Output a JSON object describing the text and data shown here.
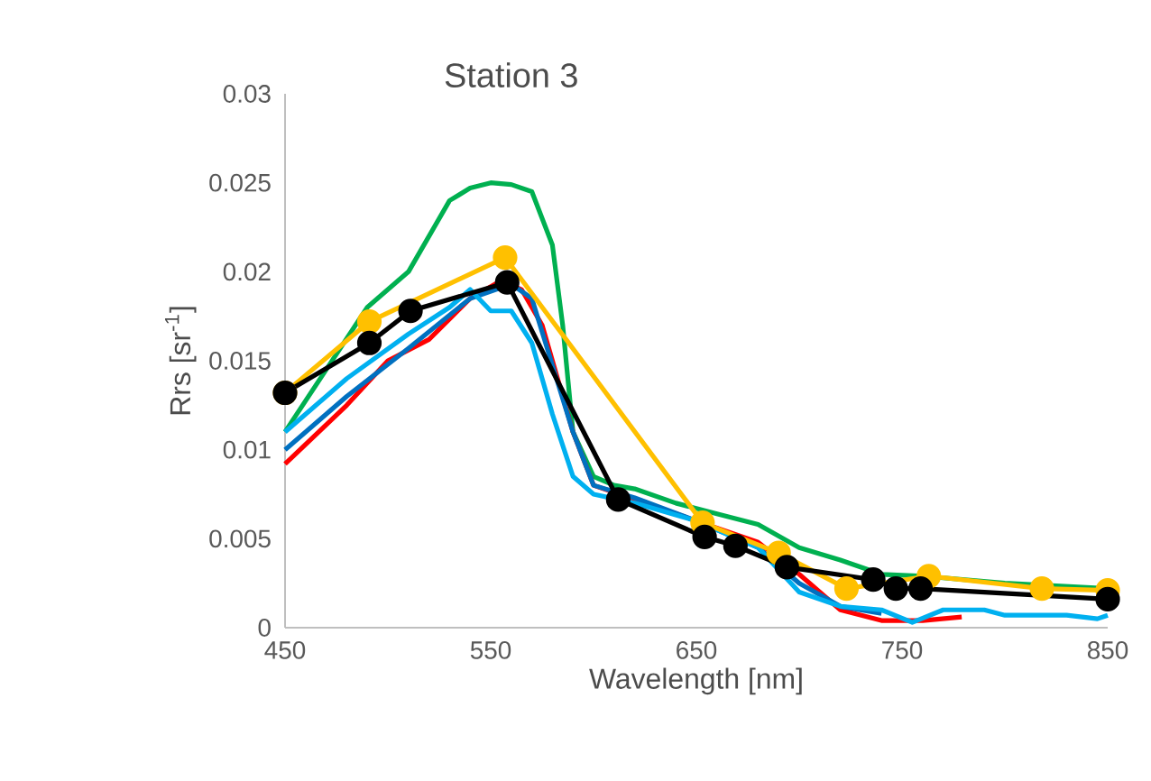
{
  "chart_data": {
    "type": "line",
    "title": "Station 3",
    "xlabel": "Wavelength [nm]",
    "ylabel": "Rrs [sr$^{-1}$]",
    "xlim": [
      450,
      850
    ],
    "xticks": [
      450,
      550,
      650,
      750,
      850
    ],
    "ylim": [
      0,
      0.03
    ],
    "yticks": [
      0,
      0.005,
      0.01,
      0.015,
      0.02,
      0.025,
      0.03
    ],
    "grid": false,
    "line_style": "solid",
    "series": [
      {
        "color": "#00b050",
        "marker": "none",
        "x": [
          450,
          470,
          490,
          510,
          520,
          530,
          540,
          550,
          560,
          570,
          580,
          585,
          590,
          600,
          610,
          620,
          640,
          660,
          680,
          700,
          720,
          740,
          760,
          800,
          850
        ],
        "values": [
          0.011,
          0.0145,
          0.018,
          0.02,
          0.022,
          0.024,
          0.0247,
          0.025,
          0.0249,
          0.0245,
          0.0215,
          0.017,
          0.011,
          0.0085,
          0.008,
          0.0078,
          0.007,
          0.0064,
          0.0058,
          0.0045,
          0.0038,
          0.003,
          0.0029,
          0.0025,
          0.0022
        ]
      },
      {
        "color": "#ff0000",
        "marker": "none",
        "x": [
          450,
          480,
          500,
          520,
          540,
          555,
          565,
          575,
          590,
          600,
          620,
          650,
          680,
          700,
          720,
          740,
          760,
          779
        ],
        "values": [
          0.0092,
          0.0125,
          0.015,
          0.0162,
          0.0185,
          0.0195,
          0.019,
          0.017,
          0.011,
          0.008,
          0.0072,
          0.006,
          0.0048,
          0.003,
          0.001,
          0.0004,
          0.0004,
          0.0006
        ]
      },
      {
        "color": "#0070c0",
        "marker": "none",
        "x": [
          450,
          480,
          510,
          540,
          560,
          570,
          590,
          600,
          620,
          650,
          680,
          700,
          720,
          740
        ],
        "values": [
          0.01,
          0.013,
          0.0157,
          0.0185,
          0.0193,
          0.0185,
          0.011,
          0.008,
          0.0073,
          0.006,
          0.0045,
          0.0025,
          0.0012,
          0.0008
        ]
      },
      {
        "color": "#00b0f0",
        "marker": "none",
        "x": [
          450,
          480,
          510,
          530,
          540,
          550,
          560,
          570,
          580,
          590,
          600,
          620,
          650,
          680,
          700,
          720,
          740,
          755,
          770,
          790,
          800,
          830,
          845,
          850
        ],
        "values": [
          0.011,
          0.014,
          0.0165,
          0.018,
          0.019,
          0.0178,
          0.0178,
          0.016,
          0.012,
          0.0085,
          0.0075,
          0.007,
          0.006,
          0.0045,
          0.002,
          0.0012,
          0.001,
          0.0003,
          0.001,
          0.001,
          0.0007,
          0.0007,
          0.0005,
          0.0007
        ]
      },
      {
        "color": "#ffc000",
        "marker": "circle",
        "x": [
          450,
          491,
          557,
          653,
          690,
          723,
          763,
          818,
          850
        ],
        "values": [
          0.0132,
          0.0172,
          0.0208,
          0.0059,
          0.0042,
          0.0022,
          0.0029,
          0.0022,
          0.0021
        ]
      },
      {
        "color": "#000000",
        "marker": "circle",
        "x": [
          450,
          491,
          511,
          558,
          612,
          654,
          669,
          694,
          736,
          747,
          759,
          850
        ],
        "values": [
          0.0132,
          0.016,
          0.0178,
          0.0194,
          0.0072,
          0.0051,
          0.0046,
          0.0034,
          0.0027,
          0.0022,
          0.0022,
          0.0016
        ]
      }
    ]
  }
}
